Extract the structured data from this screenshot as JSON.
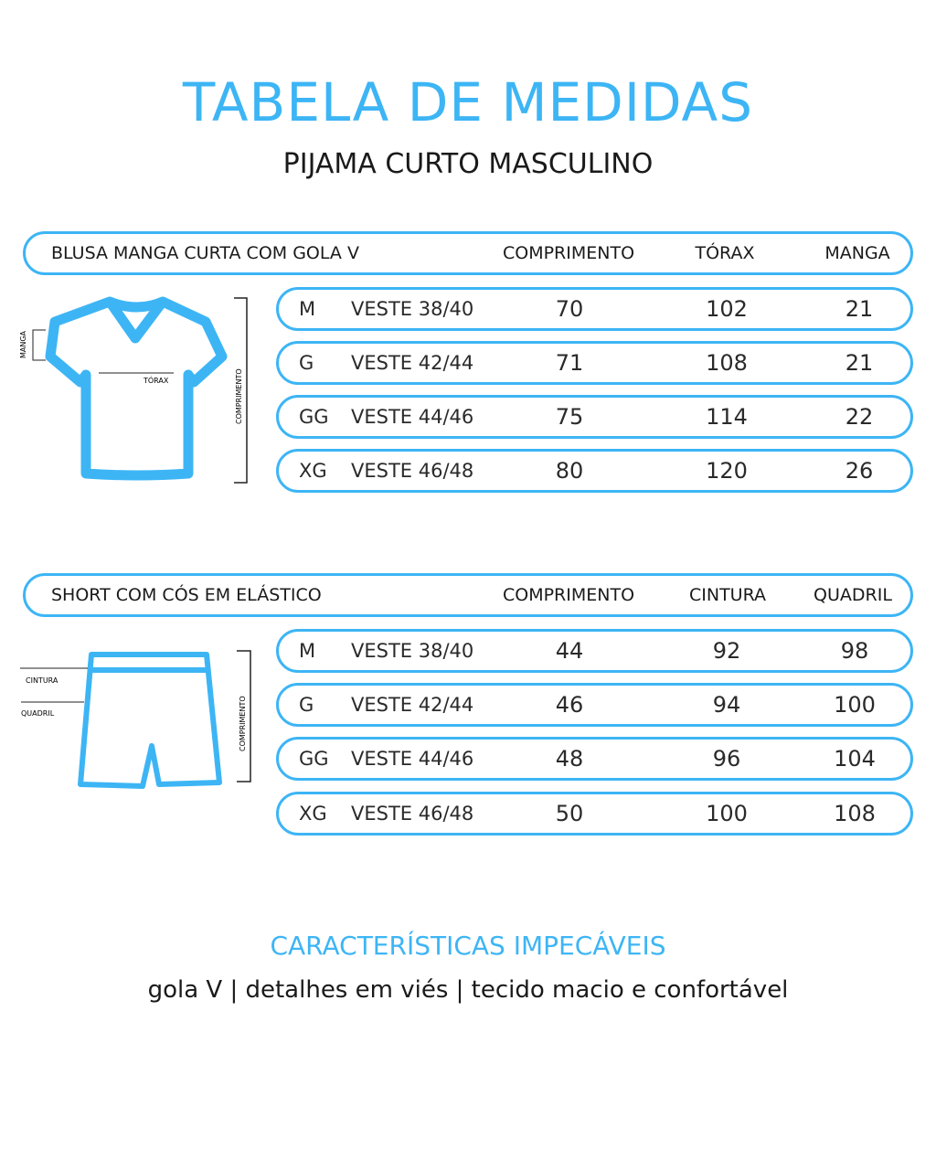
{
  "title": "TABELA DE MEDIDAS",
  "subtitle": "PIJAMA CURTO MASCULINO",
  "accent_color": "#3db5f5",
  "shirt": {
    "heading": "BLUSA MANGA CURTA COM GOLA V",
    "columns": [
      "COMPRIMENTO",
      "TÓRAX",
      "MANGA"
    ],
    "diagram_labels": {
      "manga": "MANGA",
      "torax": "TÓRAX",
      "comprimento": "COMPRIMENTO"
    },
    "rows": [
      {
        "size": "M",
        "veste": "VESTE 38/40",
        "values": [
          "70",
          "102",
          "21"
        ]
      },
      {
        "size": "G",
        "veste": "VESTE 42/44",
        "values": [
          "71",
          "108",
          "21"
        ]
      },
      {
        "size": "GG",
        "veste": "VESTE 44/46",
        "values": [
          "75",
          "114",
          "22"
        ]
      },
      {
        "size": "XG",
        "veste": "VESTE 46/48",
        "values": [
          "80",
          "120",
          "26"
        ]
      }
    ]
  },
  "short": {
    "heading": "SHORT COM CÓS EM ELÁSTICO",
    "columns": [
      "COMPRIMENTO",
      "CINTURA",
      "QUADRIL"
    ],
    "diagram_labels": {
      "cintura": "CINTURA",
      "quadril": "QUADRIL",
      "comprimento": "COMPRIMENTO"
    },
    "rows": [
      {
        "size": "M",
        "veste": "VESTE 38/40",
        "values": [
          "44",
          "92",
          "98"
        ]
      },
      {
        "size": "G",
        "veste": "VESTE 42/44",
        "values": [
          "46",
          "94",
          "100"
        ]
      },
      {
        "size": "GG",
        "veste": "VESTE 44/46",
        "values": [
          "48",
          "96",
          "104"
        ]
      },
      {
        "size": "XG",
        "veste": "VESTE 46/48",
        "values": [
          "50",
          "100",
          "108"
        ]
      }
    ]
  },
  "features_title": "CARACTERÍSTICAS IMPECÁVEIS",
  "features": "gola V | detalhes em viés | tecido macio e confortável"
}
